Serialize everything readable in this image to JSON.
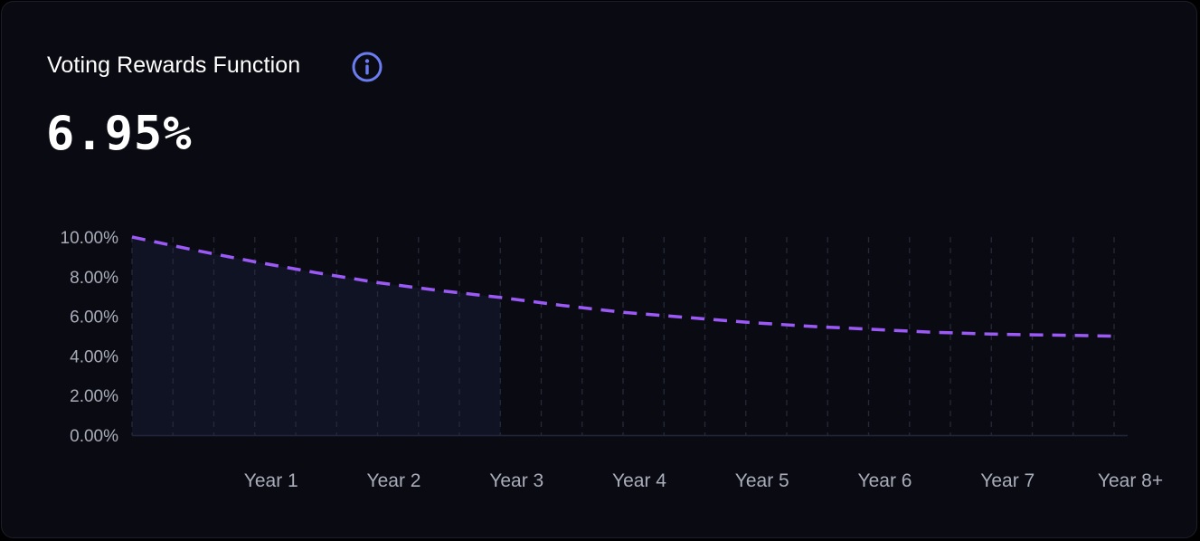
{
  "header": {
    "title": "Voting Rewards Function",
    "value": "6.95%"
  },
  "colors": {
    "line": "#9b59f5",
    "area": "#0f1324",
    "info_icon": "#6b7cf0",
    "grid": "#262938",
    "axis": "#23263a"
  },
  "chart_data": {
    "type": "line",
    "ylim": [
      0,
      10
    ],
    "xlim": [
      0,
      8
    ],
    "y_ticks": [
      "0.00%",
      "2.00%",
      "4.00%",
      "6.00%",
      "8.00%",
      "10.00%"
    ],
    "y_tick_values": [
      0,
      2,
      4,
      6,
      8,
      10
    ],
    "x_ticks": [
      "Year 1",
      "Year 2",
      "Year 3",
      "Year 4",
      "Year 5",
      "Year 6",
      "Year 7",
      "Year 8+"
    ],
    "x_tick_values": [
      1,
      2,
      3,
      4,
      5,
      6,
      7,
      8
    ],
    "series": [
      {
        "x": [
          0,
          0.5,
          1,
          1.5,
          2,
          2.5,
          3,
          3.5,
          4,
          4.5,
          5,
          5.5,
          6,
          6.5,
          7,
          7.5,
          8
        ],
        "values": [
          10.0,
          9.35,
          8.75,
          8.2,
          7.7,
          7.3,
          6.95,
          6.55,
          6.2,
          5.95,
          5.7,
          5.5,
          5.35,
          5.2,
          5.1,
          5.05,
          5.0
        ]
      }
    ],
    "shaded_until_x": 3,
    "grid": true
  }
}
